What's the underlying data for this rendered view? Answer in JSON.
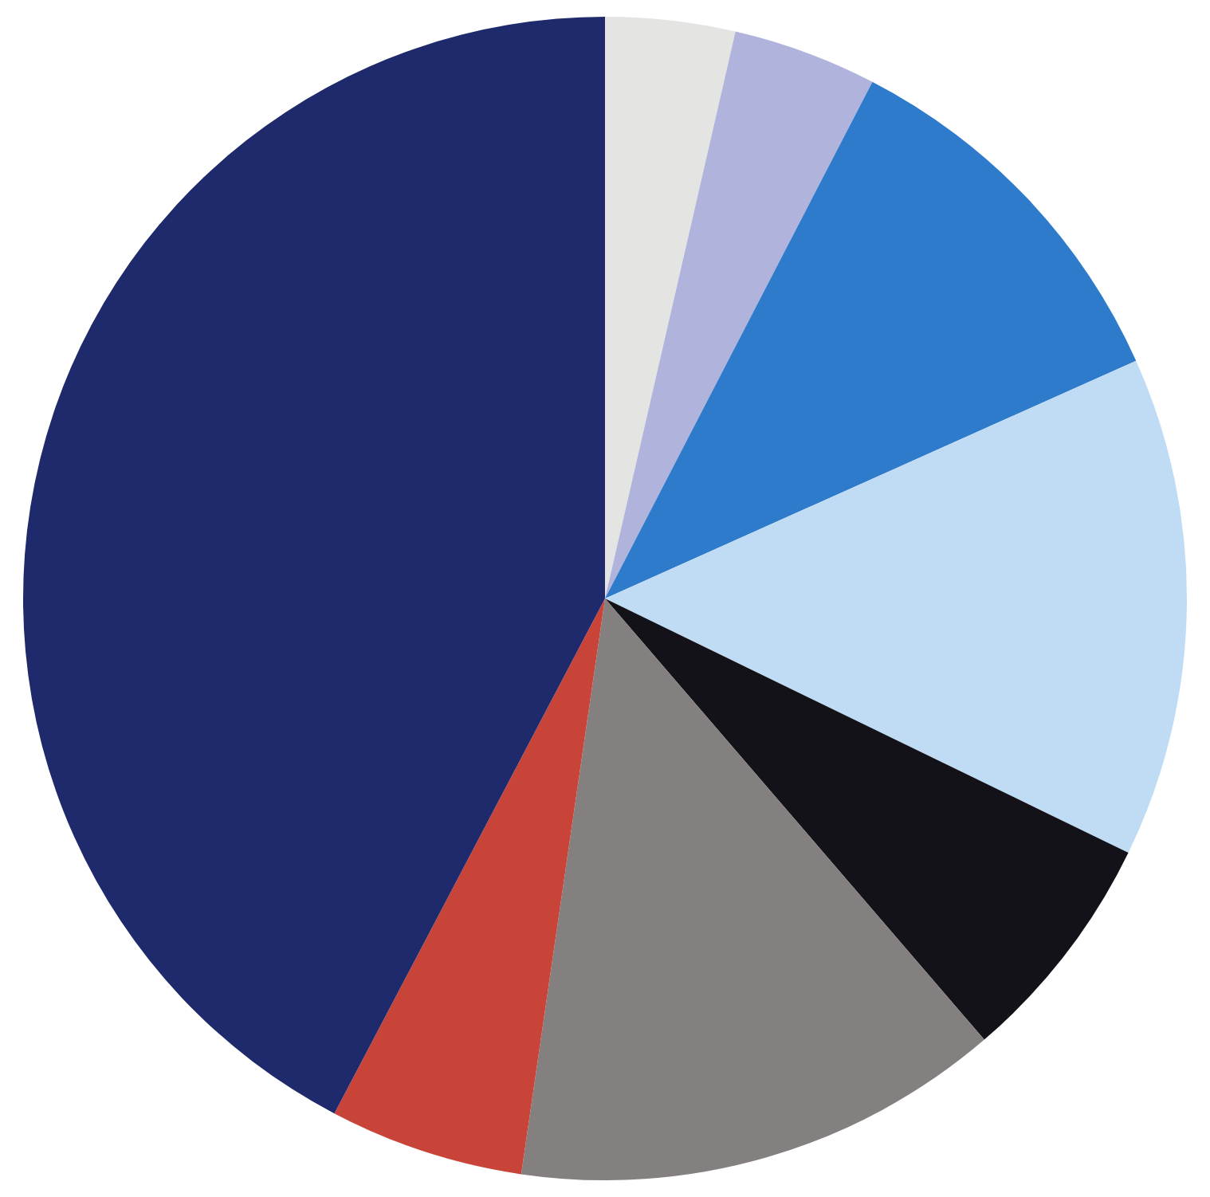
{
  "chart_data": {
    "type": "pie",
    "categories": [
      null,
      null,
      null,
      null,
      null,
      null,
      null,
      null
    ],
    "values": [
      3.6,
      4.0,
      10.7,
      13.9,
      6.5,
      13.6,
      5.4,
      42.3
    ],
    "colors": [
      "#e4e4e2",
      "#b0b4dc",
      "#2e7bcc",
      "#c0dcf4",
      "#121218",
      "#858080",
      "#c84438",
      "#1e2a6c"
    ]
  }
}
